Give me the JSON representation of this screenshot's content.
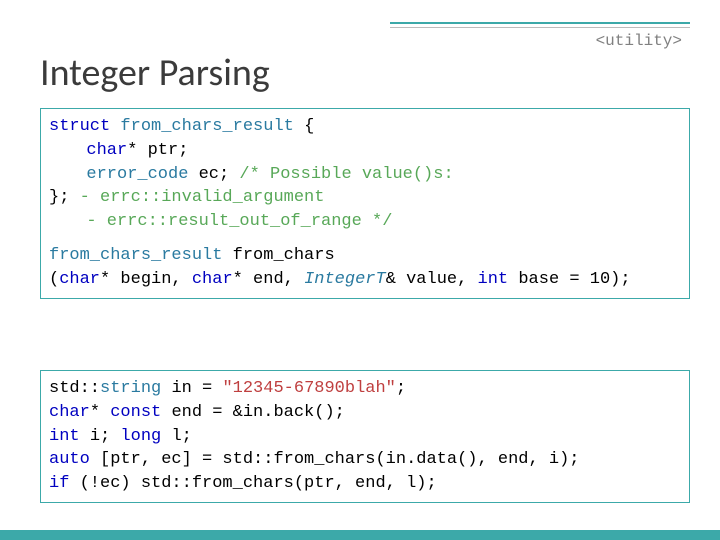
{
  "header_tag": "<utility>",
  "title": "Integer Parsing",
  "colors": {
    "accent": "#3ca9a9",
    "keyword": "#0000c0",
    "type": "#2a7aa0",
    "comment": "#58a858",
    "string": "#bf3f3f",
    "text": "#000000",
    "gray": "#808080",
    "divider_gray": "#bcbcbc",
    "background": "#ffffff"
  },
  "box1": {
    "l1": {
      "kw": "struct",
      "type": " from_chars_result ",
      "rest": "{"
    },
    "l2": {
      "kw": "char",
      "rest": "* ptr;"
    },
    "l3": {
      "type": "error_code ",
      "var": "ec; ",
      "comment": "/* Possible value()s:"
    },
    "l4": {
      "brace": "}; ",
      "comment": "- errc::invalid_argument"
    },
    "l5": {
      "comment_a": "- errc::result_out_of_range",
      "comment_b": "     */"
    },
    "l6": {
      "type": "from_chars_result ",
      "name": "from_chars"
    },
    "l7": {
      "open": "(",
      "kw1": "char",
      "a": "* begin, ",
      "kw2": "char",
      "b": "* end, ",
      "it": "IntegerT",
      "c": "& value, ",
      "kw3": "int",
      "d": " base = 10);"
    }
  },
  "box2": {
    "l1": {
      "a": "std::",
      "type": "string ",
      "b": "in = ",
      "str": "\"12345-67890blah\"",
      "c": ";"
    },
    "l2": {
      "kw1": "char",
      "a": "* ",
      "kw2": "const ",
      "b": "end = &in.back();"
    },
    "l3": {
      "kw1": "int ",
      "a": "i; ",
      "kw2": "long ",
      "b": "l;"
    },
    "l4": {
      "kw": "auto ",
      "rest": "[ptr, ec] = std::from_chars(in.data(), end, i);"
    },
    "l5": {
      "kw": "if ",
      "rest": "(!ec) std::from_chars(ptr, end, l);"
    }
  }
}
